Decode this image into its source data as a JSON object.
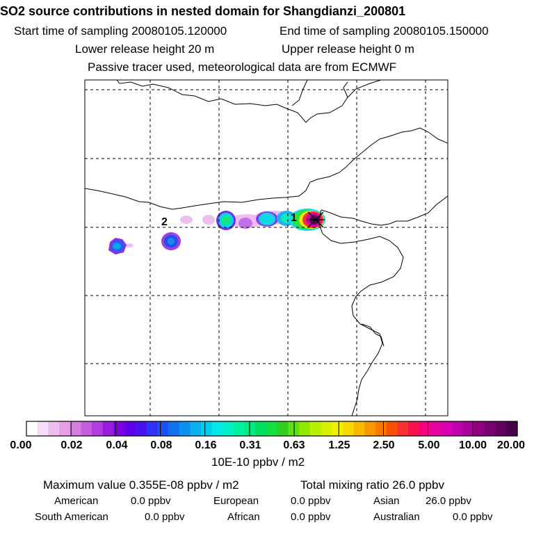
{
  "title": "SO2 source contributions in nested domain for Shangdianzi_200801",
  "header": {
    "start_time": "Start time of sampling 20080105.120000",
    "end_time": "End time of sampling 20080105.150000",
    "lower_release": "Lower release height   20 m",
    "upper_release": "Upper release height    0 m",
    "tracer_note": "Passive tracer used, meteorological data are from ECMWF"
  },
  "map": {
    "marker_1": "1",
    "marker_2": "2",
    "receptor_symbol": "star-cross-icon"
  },
  "colorbar": {
    "unit": "10E-10 ppbv / m2",
    "tick_labels": [
      "0.00",
      "0.02",
      "0.04",
      "0.08",
      "0.16",
      "0.31",
      "0.63",
      "1.25",
      "2.50",
      "5.00",
      "10.00",
      "20.00"
    ],
    "colors": [
      "#ffffff",
      "#f7dcf7",
      "#efbcf0",
      "#e79de8",
      "#d67de0",
      "#c85ce0",
      "#b23be3",
      "#9a1ae0",
      "#7e00e0",
      "#6000ea",
      "#4a10f0",
      "#3030f8",
      "#1c50f8",
      "#1070f0",
      "#0a90f0",
      "#0ab0f0",
      "#00d0f0",
      "#00e8e8",
      "#00f0c8",
      "#00f0a0",
      "#00e880",
      "#00e060",
      "#10e040",
      "#30d020",
      "#60e010",
      "#90e800",
      "#b8f000",
      "#d8f000",
      "#f0f000",
      "#f8d800",
      "#f8b800",
      "#f89800",
      "#f87800",
      "#f85000",
      "#f83030",
      "#f81050",
      "#f80080",
      "#e800a0",
      "#d800b0",
      "#c000b0",
      "#a80098",
      "#900080",
      "#780070",
      "#600060",
      "#480048"
    ]
  },
  "stats": {
    "max_value": "Maximum value  0.355E-08 ppbv / m2",
    "total_mixing": "Total mixing ratio       26.0 ppbv",
    "american_label": "American",
    "american_value": "0.0 ppbv",
    "european_label": "European",
    "european_value": "0.0 ppbv",
    "asian_label": "Asian",
    "asian_value": "26.0 ppbv",
    "south_american_label": "South American",
    "south_american_value": "0.0 ppbv",
    "african_label": "African",
    "african_value": "0.0 ppbv",
    "australian_label": "Australian",
    "australian_value": "0.0 ppbv"
  }
}
